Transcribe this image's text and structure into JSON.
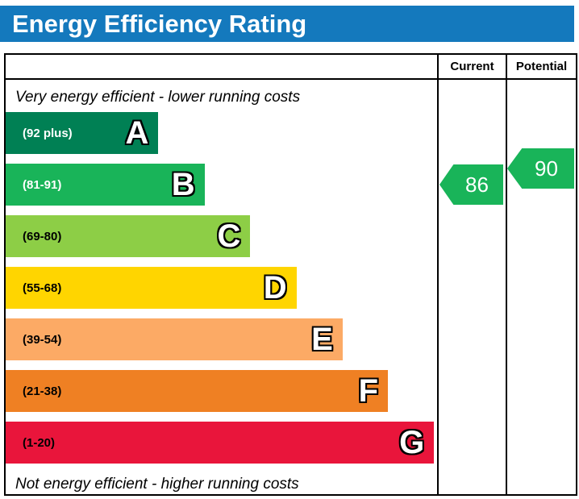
{
  "title": "Energy Efficiency Rating",
  "columns": {
    "current": "Current",
    "potential": "Potential"
  },
  "notes": {
    "top": "Very energy efficient - lower running costs",
    "bottom": "Not energy efficient - higher running costs"
  },
  "colors": {
    "title_bg": "#1479bd",
    "title_text": "#ffffff"
  },
  "chart_data": {
    "type": "bar",
    "title": "Energy Efficiency Rating",
    "orientation": "horizontal",
    "bands": [
      {
        "letter": "A",
        "range": "(92 plus)",
        "color": "#008054",
        "label_color": "#ffffff",
        "width_pct": 35.4
      },
      {
        "letter": "B",
        "range": "(81-91)",
        "color": "#19b459",
        "label_color": "#ffffff",
        "width_pct": 46.1
      },
      {
        "letter": "C",
        "range": "(69-80)",
        "color": "#8dce46",
        "label_color": "#000000",
        "width_pct": 56.7
      },
      {
        "letter": "D",
        "range": "(55-68)",
        "color": "#ffd500",
        "label_color": "#000000",
        "width_pct": 67.4
      },
      {
        "letter": "E",
        "range": "(39-54)",
        "color": "#fcaa65",
        "label_color": "#000000",
        "width_pct": 78.1
      },
      {
        "letter": "F",
        "range": "(21-38)",
        "color": "#ef8023",
        "label_color": "#000000",
        "width_pct": 88.6
      },
      {
        "letter": "G",
        "range": "(1-20)",
        "color": "#e9153b",
        "label_color": "#000000",
        "width_pct": 99.3
      }
    ],
    "current": {
      "value": 86,
      "band": "B",
      "color": "#19b459"
    },
    "potential": {
      "value": 90,
      "band": "B",
      "color": "#19b459"
    }
  }
}
